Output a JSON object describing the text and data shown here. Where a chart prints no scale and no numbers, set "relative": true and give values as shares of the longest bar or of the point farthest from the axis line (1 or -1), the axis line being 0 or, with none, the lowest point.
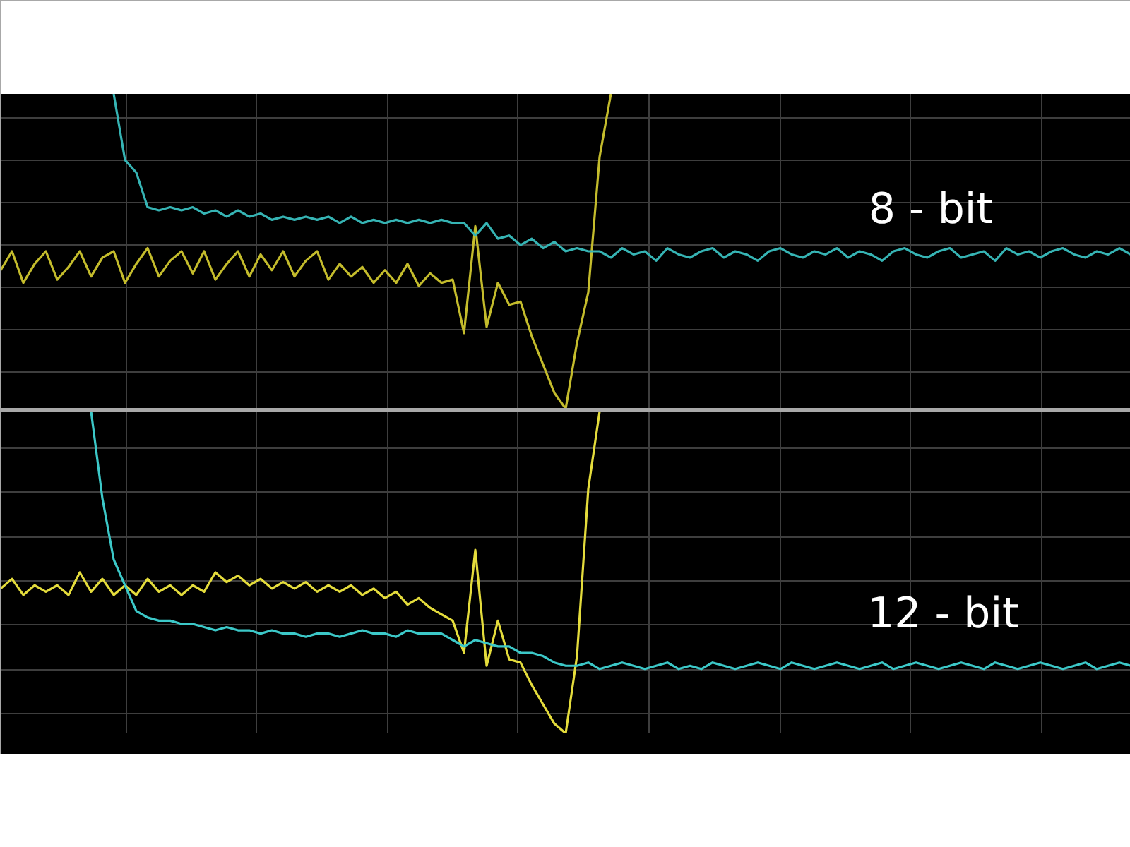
{
  "chart_data": [
    {
      "type": "line",
      "title": "8 - bit",
      "relative": true,
      "grid": true,
      "tick_labels": false,
      "categories": [
        null,
        null,
        null,
        null,
        null,
        null,
        null,
        null,
        null,
        null,
        null,
        null,
        null,
        null,
        null,
        null,
        null,
        null,
        null,
        null,
        null,
        null,
        null,
        null,
        null,
        null,
        null,
        null,
        null,
        null,
        null,
        null,
        null,
        null,
        null,
        null,
        null,
        null,
        null,
        null,
        null,
        null,
        null,
        null,
        null,
        null,
        null,
        null,
        null,
        null,
        null,
        null,
        null,
        null,
        null,
        null,
        null,
        null,
        null,
        null,
        null,
        null,
        null,
        null,
        null,
        null,
        null,
        null,
        null,
        null,
        null,
        null,
        null,
        null,
        null,
        null,
        null,
        null,
        null,
        null,
        null,
        null,
        null,
        null,
        null,
        null,
        null,
        null,
        null,
        null,
        null,
        null,
        null,
        null,
        null,
        null,
        null,
        null,
        null,
        null,
        null
      ],
      "series": [
        {
          "color": "#c4bc2c",
          "values": [
            0.44,
            0.5,
            0.4,
            0.46,
            0.5,
            0.41,
            0.45,
            0.5,
            0.42,
            0.48,
            0.5,
            0.4,
            0.46,
            0.51,
            0.42,
            0.47,
            0.5,
            0.43,
            0.5,
            0.41,
            0.46,
            0.5,
            0.42,
            0.49,
            0.44,
            0.5,
            0.42,
            0.47,
            0.5,
            0.41,
            0.46,
            0.42,
            0.45,
            0.4,
            0.44,
            0.4,
            0.46,
            0.39,
            0.43,
            0.4,
            0.41,
            0.24,
            0.58,
            0.26,
            0.4,
            0.33,
            0.34,
            0.23,
            0.14,
            0.05,
            0.0,
            0.21,
            0.37,
            0.8,
            1.0,
            null,
            null,
            null,
            null,
            null,
            null,
            null,
            null,
            null,
            null,
            null,
            null,
            null,
            null,
            null,
            null,
            null,
            null,
            null,
            null,
            null,
            null,
            null,
            null,
            null,
            null,
            null,
            null,
            null,
            null,
            null,
            null,
            null,
            null,
            null,
            null,
            null,
            null,
            null,
            null,
            null,
            null,
            null,
            null,
            null,
            null
          ]
        },
        {
          "color": "#36b4b4",
          "values": [
            null,
            null,
            null,
            null,
            null,
            null,
            null,
            null,
            null,
            null,
            1.0,
            0.79,
            0.75,
            0.64,
            0.63,
            0.64,
            0.63,
            0.64,
            0.62,
            0.63,
            0.61,
            0.63,
            0.61,
            0.62,
            0.6,
            0.61,
            0.6,
            0.61,
            0.6,
            0.61,
            0.59,
            0.61,
            0.59,
            0.6,
            0.59,
            0.6,
            0.59,
            0.6,
            0.59,
            0.6,
            0.59,
            0.59,
            0.55,
            0.59,
            0.54,
            0.55,
            0.52,
            0.54,
            0.51,
            0.53,
            0.5,
            0.51,
            0.5,
            0.5,
            0.48,
            0.51,
            0.49,
            0.5,
            0.47,
            0.51,
            0.49,
            0.48,
            0.5,
            0.51,
            0.48,
            0.5,
            0.49,
            0.47,
            0.5,
            0.51,
            0.49,
            0.48,
            0.5,
            0.49,
            0.51,
            0.48,
            0.5,
            0.49,
            0.47,
            0.5,
            0.51,
            0.49,
            0.48,
            0.5,
            0.51,
            0.48,
            0.49,
            0.5,
            0.47,
            0.51,
            0.49,
            0.5,
            0.48,
            0.5,
            0.51,
            0.49,
            0.48,
            0.5,
            0.49,
            0.51,
            0.49
          ]
        }
      ]
    },
    {
      "type": "line",
      "title": "12 - bit",
      "relative": true,
      "grid": true,
      "tick_labels": false,
      "categories": [
        null,
        null,
        null,
        null,
        null,
        null,
        null,
        null,
        null,
        null,
        null,
        null,
        null,
        null,
        null,
        null,
        null,
        null,
        null,
        null,
        null,
        null,
        null,
        null,
        null,
        null,
        null,
        null,
        null,
        null,
        null,
        null,
        null,
        null,
        null,
        null,
        null,
        null,
        null,
        null,
        null,
        null,
        null,
        null,
        null,
        null,
        null,
        null,
        null,
        null,
        null,
        null,
        null,
        null,
        null,
        null,
        null,
        null,
        null,
        null,
        null,
        null,
        null,
        null,
        null,
        null,
        null,
        null,
        null,
        null,
        null,
        null,
        null,
        null,
        null,
        null,
        null,
        null,
        null,
        null,
        null,
        null,
        null,
        null,
        null,
        null,
        null,
        null,
        null,
        null,
        null,
        null,
        null,
        null,
        null,
        null,
        null,
        null,
        null,
        null,
        null
      ],
      "series": [
        {
          "color": "#e4dc3c",
          "values": [
            0.45,
            0.48,
            0.43,
            0.46,
            0.44,
            0.46,
            0.43,
            0.5,
            0.44,
            0.48,
            0.43,
            0.46,
            0.43,
            0.48,
            0.44,
            0.46,
            0.43,
            0.46,
            0.44,
            0.5,
            0.47,
            0.49,
            0.46,
            0.48,
            0.45,
            0.47,
            0.45,
            0.47,
            0.44,
            0.46,
            0.44,
            0.46,
            0.43,
            0.45,
            0.42,
            0.44,
            0.4,
            0.42,
            0.39,
            0.37,
            0.35,
            0.25,
            0.57,
            0.21,
            0.35,
            0.23,
            0.22,
            0.15,
            0.09,
            0.03,
            0.0,
            0.24,
            0.76,
            1.0,
            null,
            null,
            null,
            null,
            null,
            null,
            null,
            null,
            null,
            null,
            null,
            null,
            null,
            null,
            null,
            null,
            null,
            null,
            null,
            null,
            null,
            null,
            null,
            null,
            null,
            null,
            null,
            null,
            null,
            null,
            null,
            null,
            null,
            null,
            null,
            null,
            null,
            null,
            null,
            null,
            null,
            null,
            null,
            null,
            null,
            null,
            null
          ]
        },
        {
          "color": "#3cc8c8",
          "values": [
            null,
            null,
            null,
            null,
            null,
            null,
            null,
            null,
            1.0,
            0.73,
            0.54,
            0.46,
            0.38,
            0.36,
            0.35,
            0.35,
            0.34,
            0.34,
            0.33,
            0.32,
            0.33,
            0.32,
            0.32,
            0.31,
            0.32,
            0.31,
            0.31,
            0.3,
            0.31,
            0.31,
            0.3,
            0.31,
            0.32,
            0.31,
            0.31,
            0.3,
            0.32,
            0.31,
            0.31,
            0.31,
            0.29,
            0.27,
            0.29,
            0.28,
            0.27,
            0.27,
            0.25,
            0.25,
            0.24,
            0.22,
            0.21,
            0.21,
            0.22,
            0.2,
            0.21,
            0.22,
            0.21,
            0.2,
            0.21,
            0.22,
            0.2,
            0.21,
            0.2,
            0.22,
            0.21,
            0.2,
            0.21,
            0.22,
            0.21,
            0.2,
            0.22,
            0.21,
            0.2,
            0.21,
            0.22,
            0.21,
            0.2,
            0.21,
            0.22,
            0.2,
            0.21,
            0.22,
            0.21,
            0.2,
            0.21,
            0.22,
            0.21,
            0.2,
            0.22,
            0.21,
            0.2,
            0.21,
            0.22,
            0.21,
            0.2,
            0.21,
            0.22,
            0.2,
            0.21,
            0.22,
            0.21
          ]
        }
      ]
    }
  ]
}
